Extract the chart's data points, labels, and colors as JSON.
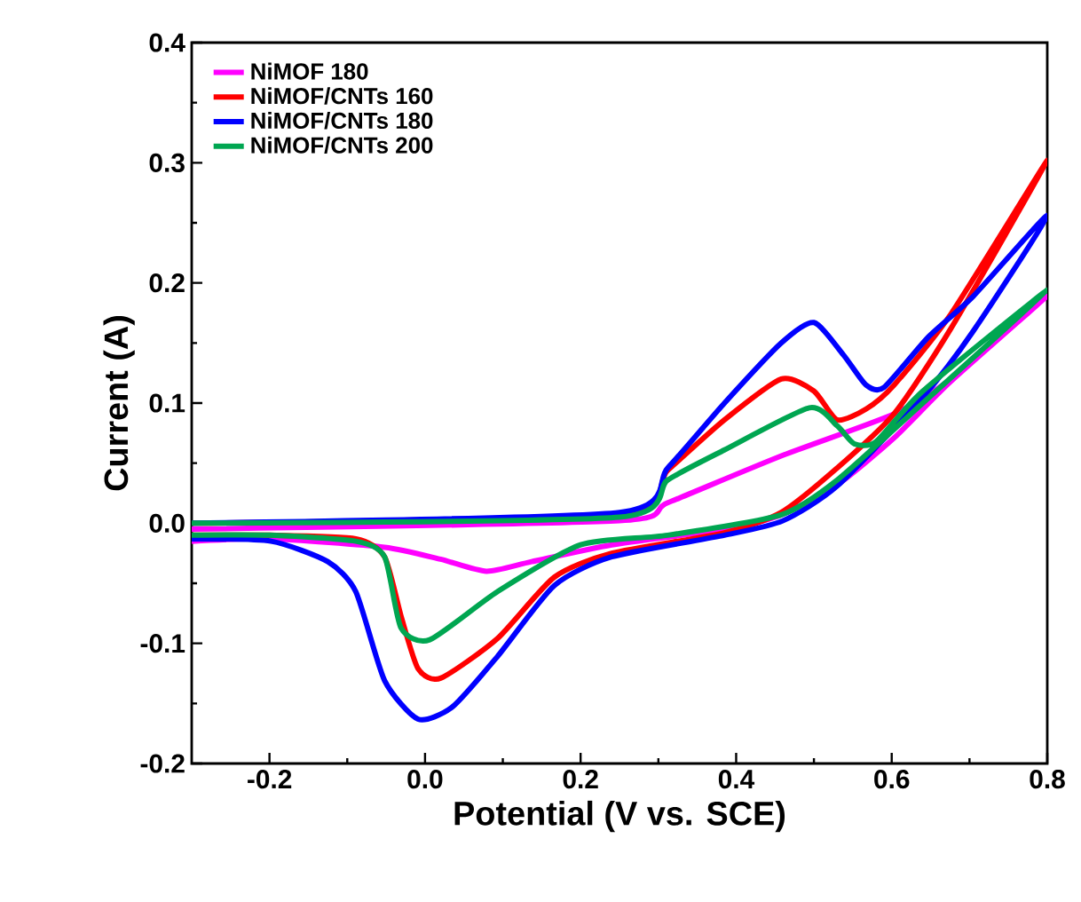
{
  "chart_data": {
    "type": "line",
    "xlabel": "Potential (V vs. SCE)",
    "ylabel": "Current (A)",
    "xlim": [
      -0.3,
      0.8
    ],
    "ylim": [
      -0.2,
      0.4
    ],
    "xticks": [
      {
        "value": -0.2,
        "label": "-0.2"
      },
      {
        "value": 0,
        "label": "0.0"
      },
      {
        "value": 0.2,
        "label": "0.2"
      },
      {
        "value": 0.4,
        "label": "0.4"
      },
      {
        "value": 0.6,
        "label": "0.6"
      },
      {
        "value": 0.8,
        "label": "0.8"
      }
    ],
    "yticks": [
      {
        "value": -0.2,
        "label": "-0.2"
      },
      {
        "value": -0.1,
        "label": "-0.1"
      },
      {
        "value": 0,
        "label": "0.0"
      },
      {
        "value": 0.1,
        "label": "0.1"
      },
      {
        "value": 0.2,
        "label": "0.2"
      },
      {
        "value": 0.3,
        "label": "0.3"
      },
      {
        "value": 0.4,
        "label": "0.4"
      }
    ],
    "legend": "top left",
    "grid": false,
    "marker": "none",
    "line_style": "solid",
    "series": [
      {
        "name": "NiMOF 180",
        "color": "#ff00ff",
        "x": [
          -0.3,
          0.25,
          0.312,
          0.458,
          0.603,
          0.676,
          0.8,
          0.676,
          0.603,
          0.53,
          0.458,
          0.385,
          0.24,
          0.137,
          0.079,
          0.02,
          -0.052,
          -0.198,
          -0.3
        ],
        "values": [
          -0.005,
          0.002,
          0.017,
          0.056,
          0.091,
          0.12,
          0.189,
          0.118,
          0.071,
          0.032,
          0.007,
          -0.005,
          -0.018,
          -0.032,
          -0.04,
          -0.03,
          -0.02,
          -0.013,
          -0.015
        ]
      },
      {
        "name": "NiMOF/CNTs 160",
        "color": "#ff0000",
        "x": [
          -0.3,
          0.25,
          0.312,
          0.385,
          0.458,
          0.5,
          0.53,
          0.567,
          0.603,
          0.676,
          0.8,
          0.676,
          0.603,
          0.53,
          0.458,
          0.385,
          0.24,
          0.166,
          0.093,
          0.02,
          -0.009,
          -0.031,
          -0.052,
          -0.089,
          -0.2,
          -0.3
        ],
        "values": [
          0.0,
          0.008,
          0.044,
          0.086,
          0.12,
          0.11,
          0.086,
          0.095,
          0.115,
          0.174,
          0.302,
          0.162,
          0.091,
          0.046,
          0.009,
          -0.008,
          -0.025,
          -0.045,
          -0.096,
          -0.129,
          -0.121,
          -0.077,
          -0.028,
          -0.013,
          -0.01,
          -0.01
        ]
      },
      {
        "name": "NiMOF/CNTs 180",
        "color": "#0000ff",
        "x": [
          -0.3,
          0.25,
          0.312,
          0.385,
          0.458,
          0.5,
          0.538,
          0.567,
          0.59,
          0.647,
          0.705,
          0.8,
          0.705,
          0.64,
          0.53,
          0.46,
          0.385,
          0.24,
          0.166,
          0.093,
          0.035,
          -0.009,
          -0.052,
          -0.089,
          -0.125,
          -0.198,
          -0.3
        ],
        "values": [
          0.0,
          0.009,
          0.046,
          0.1,
          0.15,
          0.167,
          0.14,
          0.115,
          0.113,
          0.155,
          0.189,
          0.256,
          0.16,
          0.105,
          0.031,
          0.002,
          -0.01,
          -0.028,
          -0.052,
          -0.111,
          -0.153,
          -0.163,
          -0.131,
          -0.057,
          -0.032,
          -0.015,
          -0.013
        ]
      },
      {
        "name": "NiMOF/CNTs 200",
        "color": "#00a651",
        "x": [
          -0.3,
          0.25,
          0.312,
          0.385,
          0.494,
          0.53,
          0.552,
          0.58,
          0.64,
          0.8,
          0.64,
          0.53,
          0.458,
          0.312,
          0.2,
          0.093,
          0.006,
          -0.031,
          -0.052,
          -0.089,
          -0.2,
          -0.3
        ],
        "values": [
          0.0,
          0.005,
          0.036,
          0.061,
          0.096,
          0.081,
          0.066,
          0.068,
          0.11,
          0.194,
          0.1,
          0.036,
          0.007,
          -0.01,
          -0.018,
          -0.057,
          -0.097,
          -0.087,
          -0.028,
          -0.015,
          -0.01,
          -0.01
        ]
      }
    ]
  }
}
